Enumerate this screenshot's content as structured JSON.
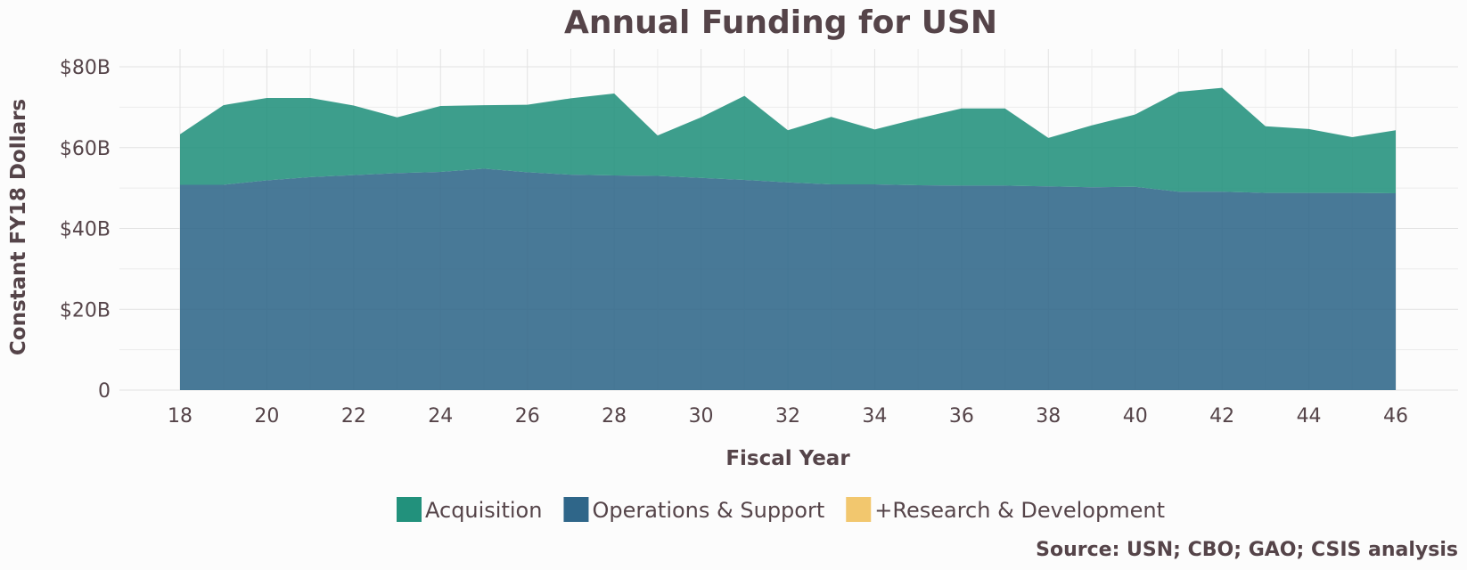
{
  "chart_data": {
    "type": "area",
    "stacked": true,
    "title": "Annual Funding for USN",
    "xlabel": "Fiscal Year",
    "ylabel": "Constant FY18 Dollars",
    "caption": "Source: USN; CBO; GAO; CSIS analysis",
    "xlim": [
      18,
      46
    ],
    "ylim": [
      0,
      80
    ],
    "x_ticks": [
      18,
      20,
      22,
      24,
      26,
      28,
      30,
      32,
      34,
      36,
      38,
      40,
      42,
      44,
      46
    ],
    "x_tick_labels": [
      "18",
      "20",
      "22",
      "24",
      "26",
      "28",
      "30",
      "32",
      "34",
      "36",
      "38",
      "40",
      "42",
      "44",
      "46"
    ],
    "y_ticks": [
      0,
      20,
      40,
      60,
      80
    ],
    "y_tick_labels": [
      "0",
      "$20B",
      "$40B",
      "$60B",
      "$80B"
    ],
    "grid": true,
    "legend_position": "bottom",
    "x": [
      18,
      19,
      20,
      21,
      22,
      23,
      24,
      25,
      26,
      27,
      28,
      29,
      30,
      31,
      32,
      33,
      34,
      35,
      36,
      37,
      38,
      39,
      40,
      41,
      42,
      43,
      44,
      45,
      46
    ],
    "series": [
      {
        "name": "Operations & Support",
        "color": "#2f6689",
        "values": [
          50.8,
          50.8,
          51.9,
          52.7,
          53.2,
          53.7,
          54.0,
          54.8,
          53.9,
          53.3,
          53.1,
          53.0,
          52.5,
          52.0,
          51.4,
          50.9,
          50.9,
          50.7,
          50.6,
          50.6,
          50.4,
          50.2,
          50.3,
          49.1,
          49.1,
          48.8,
          48.8,
          48.8,
          48.7
        ]
      },
      {
        "name": "Acquisition",
        "color": "#22917c",
        "values": [
          12.5,
          19.7,
          20.4,
          19.6,
          17.2,
          13.8,
          16.3,
          15.7,
          16.7,
          18.9,
          20.3,
          10.0,
          15.0,
          20.8,
          12.9,
          16.7,
          13.6,
          16.5,
          19.1,
          19.1,
          12.0,
          15.3,
          17.9,
          24.7,
          25.7,
          16.5,
          15.8,
          13.8,
          15.6
        ]
      },
      {
        "name": "+Research & Development",
        "color": "#f2c76e",
        "values": [
          0,
          0,
          0,
          0,
          0,
          0,
          0,
          0,
          0,
          0,
          0,
          0,
          0,
          0,
          0,
          0,
          0,
          0,
          0,
          0,
          0,
          0,
          0,
          0,
          0,
          0,
          0,
          0,
          0
        ]
      }
    ],
    "legend": [
      {
        "label": "Acquisition",
        "color": "#22917c"
      },
      {
        "label": "Operations & Support",
        "color": "#2f6689"
      },
      {
        "label": "+Research & Development",
        "color": "#f2c76e"
      }
    ]
  }
}
